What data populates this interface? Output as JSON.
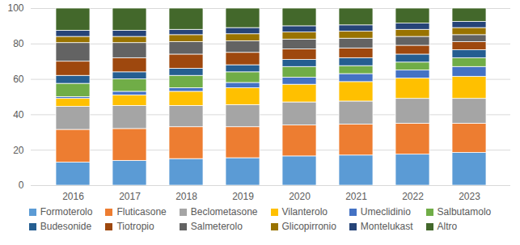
{
  "chart_data": {
    "type": "bar",
    "stacked": true,
    "grid": true,
    "legend": "bottom",
    "categories": [
      "2016",
      "2017",
      "2018",
      "2019",
      "2020",
      "2021",
      "2022",
      "2023"
    ],
    "ylim": [
      0,
      100
    ],
    "yticks": [
      0,
      20,
      40,
      60,
      80,
      100
    ],
    "series": [
      {
        "name": "Formoterolo",
        "color": "#5B9BD5",
        "values": [
          13,
          14,
          15,
          15.5,
          16.5,
          17,
          17.5,
          18.5
        ]
      },
      {
        "name": "Fluticasone",
        "color": "#ED7D31",
        "values": [
          18.5,
          18,
          18,
          17.5,
          17.5,
          17.5,
          17.5,
          16.5
        ]
      },
      {
        "name": "Beclometasone",
        "color": "#A5A5A5",
        "values": [
          13,
          13,
          12,
          12.5,
          13,
          13,
          14,
          14
        ]
      },
      {
        "name": "Vilanterolo",
        "color": "#FFC000",
        "values": [
          4.5,
          6,
          8,
          9.5,
          10,
          11,
          11.5,
          12.5
        ]
      },
      {
        "name": "Umeclidinio",
        "color": "#4472C4",
        "values": [
          1,
          2,
          2,
          3,
          4,
          4.5,
          4.5,
          5.5
        ]
      },
      {
        "name": "Salbutamolo",
        "color": "#70AD47",
        "values": [
          7.5,
          7,
          7,
          6,
          6,
          4.5,
          4.5,
          5
        ]
      },
      {
        "name": "Budesonide",
        "color": "#255E91",
        "values": [
          4.5,
          4,
          4,
          4,
          4,
          4.5,
          4.5,
          4.5
        ]
      },
      {
        "name": "Tiotropio",
        "color": "#9E480E",
        "values": [
          8,
          8,
          8,
          7,
          6,
          5.5,
          5,
          4.5
        ]
      },
      {
        "name": "Salmeterolo",
        "color": "#636363",
        "values": [
          10.5,
          8.5,
          7,
          6.5,
          5.5,
          5.5,
          5,
          4
        ]
      },
      {
        "name": "Glicopirronio",
        "color": "#997300",
        "values": [
          3.5,
          3.5,
          4,
          4,
          4,
          4,
          4,
          4
        ]
      },
      {
        "name": "Montelukast",
        "color": "#264478",
        "values": [
          3.5,
          3.5,
          3,
          3.5,
          3.5,
          3.5,
          3.5,
          3.5
        ]
      },
      {
        "name": "Altro",
        "color": "#43682B",
        "values": [
          12.5,
          12.5,
          12,
          11,
          10,
          9.5,
          8.5,
          7.5
        ]
      }
    ]
  }
}
